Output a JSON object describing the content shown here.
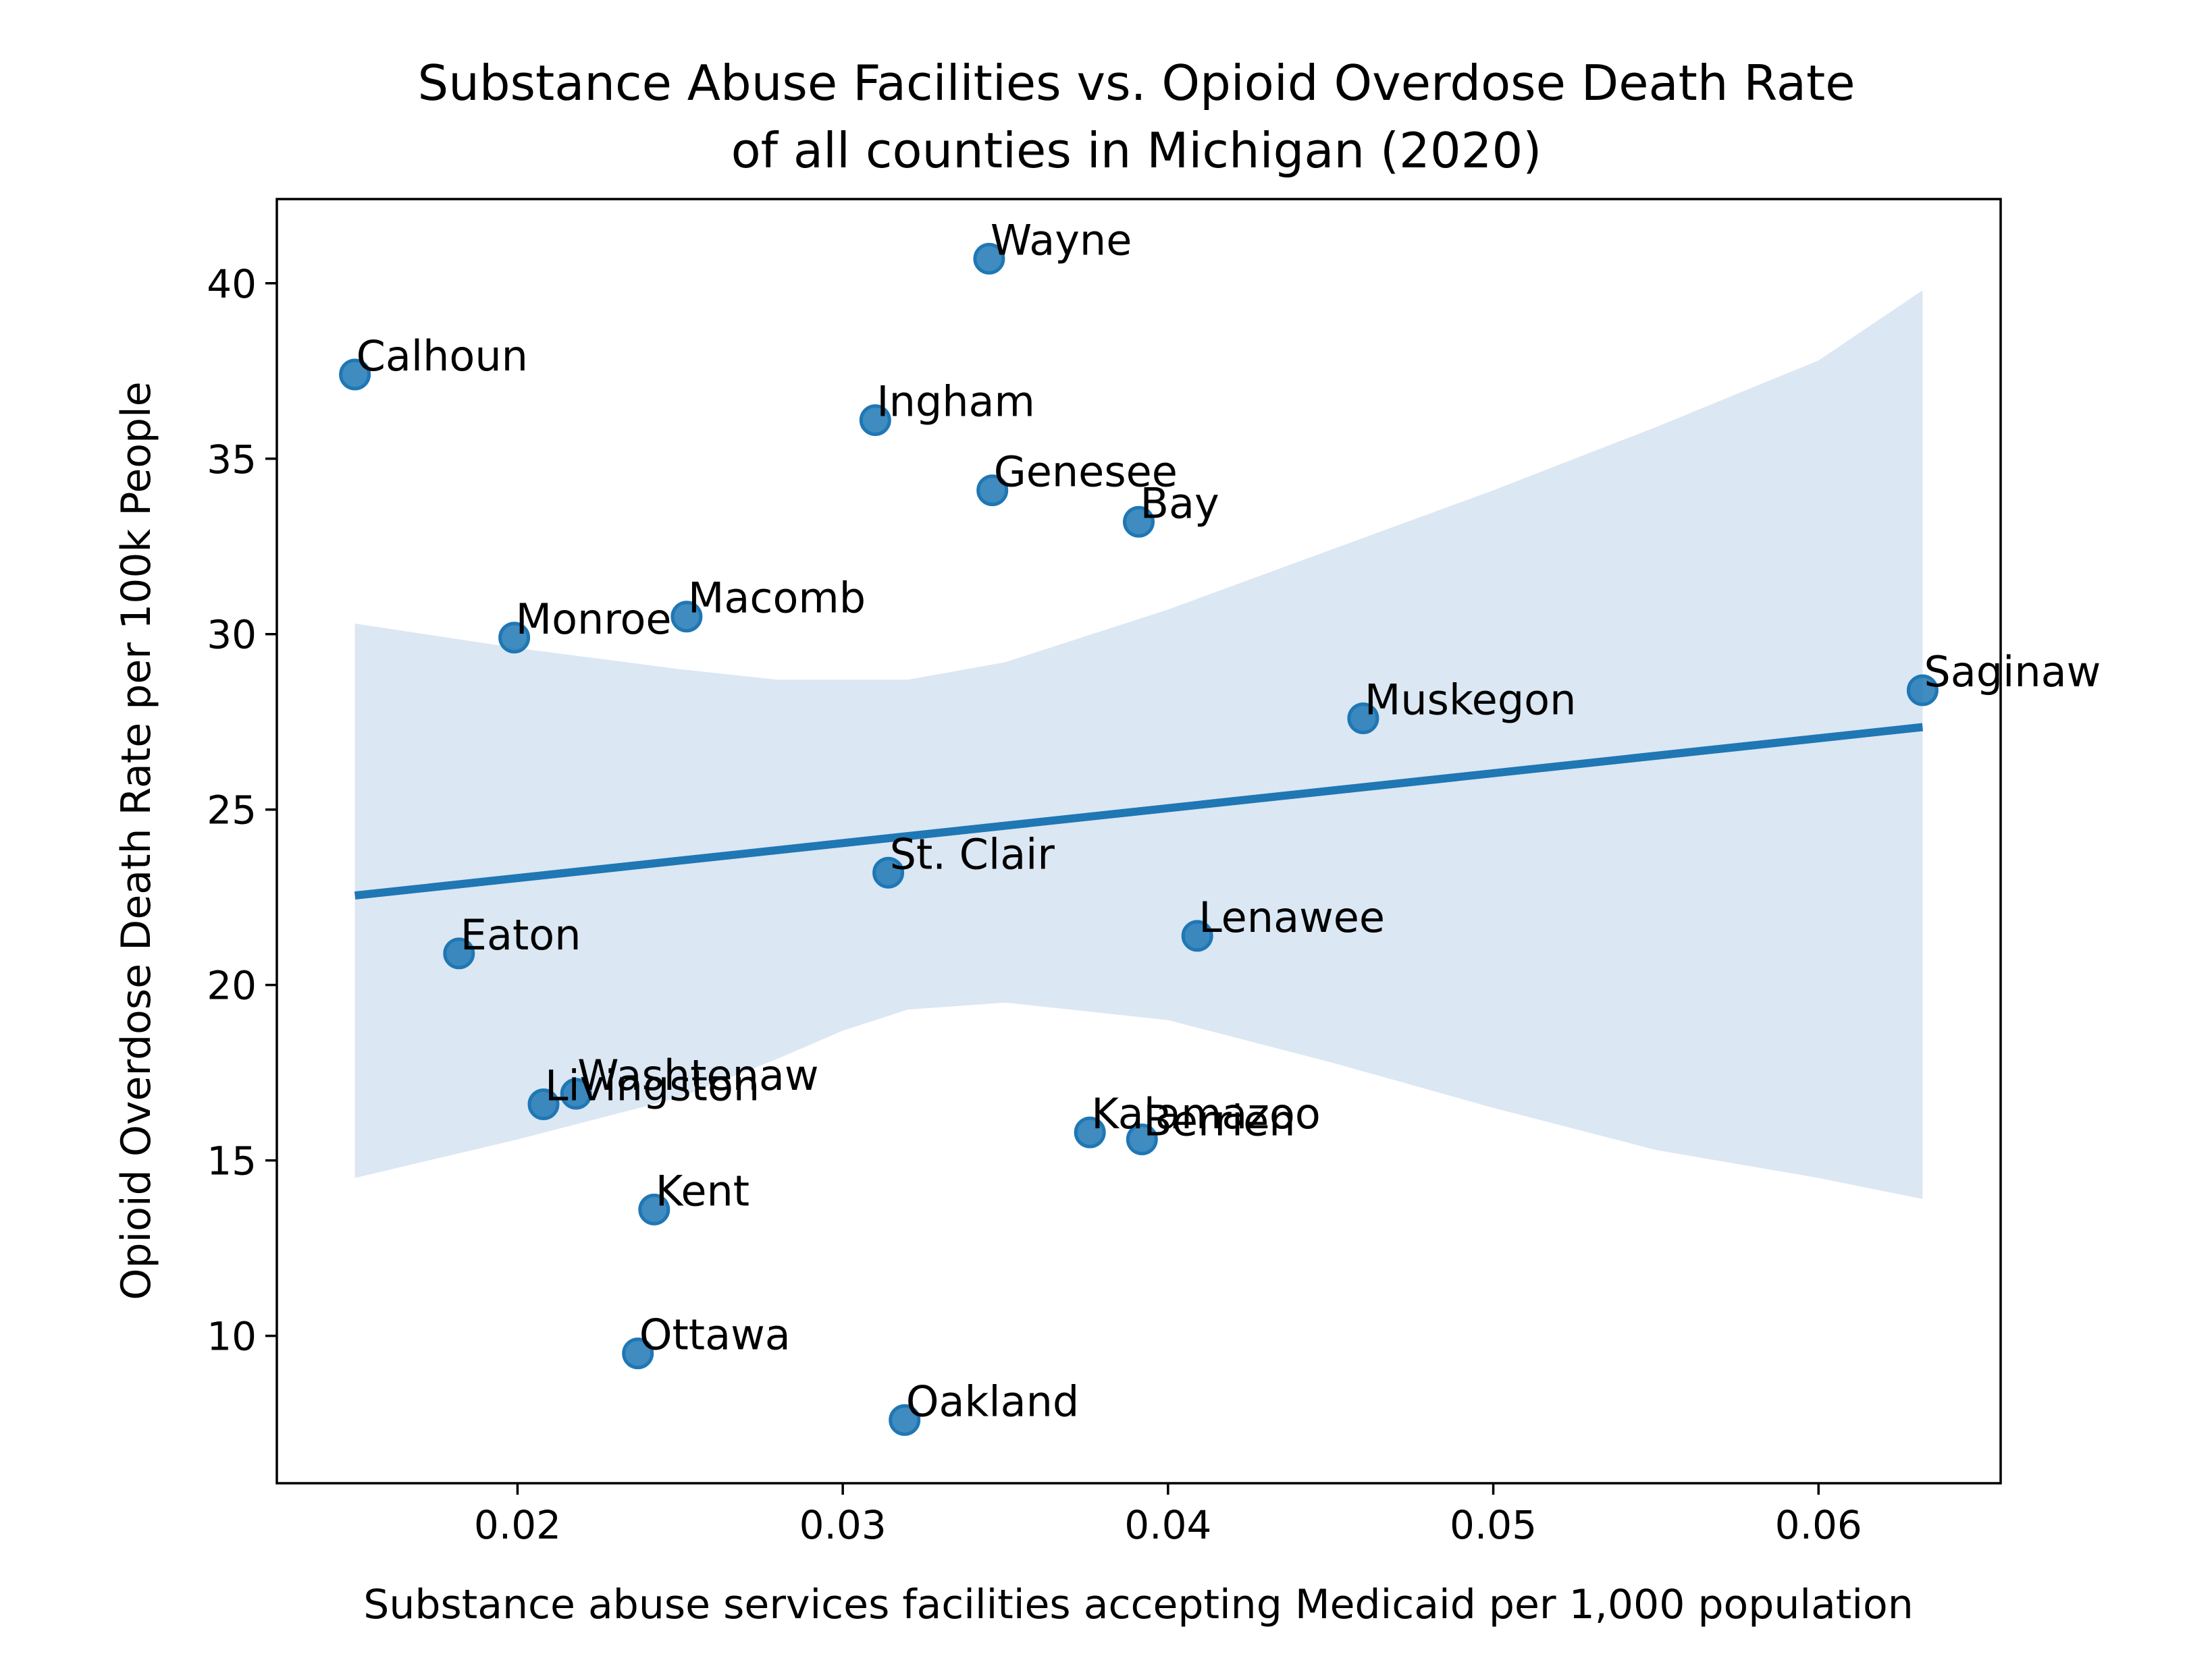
{
  "chart_data": {
    "type": "scatter",
    "title": [
      "Substance Abuse Facilities vs. Opioid Overdose Death Rate",
      "of all counties in Michigan (2020)"
    ],
    "xlabel": "Substance abuse services facilities accepting Medicaid per 1,000 population",
    "ylabel": "Opioid Overdose Death Rate per 100k People",
    "xlim": [
      0.0126,
      0.0656
    ],
    "ylim": [
      5.8,
      42.4
    ],
    "xticks": [
      {
        "value": 0.02,
        "label": "0.02"
      },
      {
        "value": 0.03,
        "label": "0.03"
      },
      {
        "value": 0.04,
        "label": "0.04"
      },
      {
        "value": 0.05,
        "label": "0.05"
      },
      {
        "value": 0.06,
        "label": "0.06"
      }
    ],
    "yticks": [
      {
        "value": 10,
        "label": "10"
      },
      {
        "value": 15,
        "label": "15"
      },
      {
        "value": 20,
        "label": "20"
      },
      {
        "value": 25,
        "label": "25"
      },
      {
        "value": 30,
        "label": "30"
      },
      {
        "value": 35,
        "label": "35"
      },
      {
        "value": 40,
        "label": "40"
      }
    ],
    "point_color": "#1f77b4",
    "band_color": "#dbe7f3",
    "points": [
      {
        "label": "Wayne",
        "x": 0.0345,
        "y": 40.7
      },
      {
        "label": "Calhoun",
        "x": 0.015,
        "y": 37.4
      },
      {
        "label": "Ingham",
        "x": 0.031,
        "y": 36.1
      },
      {
        "label": "Genesee",
        "x": 0.0346,
        "y": 34.1
      },
      {
        "label": "Bay",
        "x": 0.0391,
        "y": 33.2
      },
      {
        "label": "Macomb",
        "x": 0.0252,
        "y": 30.5
      },
      {
        "label": "Monroe",
        "x": 0.0199,
        "y": 29.9
      },
      {
        "label": "Saginaw",
        "x": 0.0632,
        "y": 28.4
      },
      {
        "label": "Muskegon",
        "x": 0.046,
        "y": 27.6
      },
      {
        "label": "St. Clair",
        "x": 0.0314,
        "y": 23.2
      },
      {
        "label": "Lenawee",
        "x": 0.0409,
        "y": 21.4
      },
      {
        "label": "Eaton",
        "x": 0.0182,
        "y": 20.9
      },
      {
        "label": "Washtenaw",
        "x": 0.0218,
        "y": 16.9
      },
      {
        "label": "Livingston",
        "x": 0.0208,
        "y": 16.6
      },
      {
        "label": "Kalamazoo",
        "x": 0.0376,
        "y": 15.8
      },
      {
        "label": "Berrien",
        "x": 0.0392,
        "y": 15.6
      },
      {
        "label": "Kent",
        "x": 0.0242,
        "y": 13.6
      },
      {
        "label": "Ottawa",
        "x": 0.0237,
        "y": 9.5
      },
      {
        "label": "Oakland",
        "x": 0.0319,
        "y": 7.6
      }
    ],
    "regression": {
      "x": [
        0.015,
        0.0632
      ],
      "y": [
        22.55,
        27.35
      ]
    },
    "confidence_band": {
      "x": [
        0.015,
        0.02,
        0.025,
        0.028,
        0.03,
        0.032,
        0.035,
        0.04,
        0.045,
        0.05,
        0.055,
        0.06,
        0.0632
      ],
      "upper": [
        30.3,
        29.6,
        29.0,
        28.7,
        28.7,
        28.7,
        29.2,
        30.7,
        32.4,
        34.1,
        35.9,
        37.8,
        39.8
      ],
      "lower": [
        14.5,
        15.6,
        16.8,
        17.9,
        18.7,
        19.3,
        19.5,
        19.0,
        17.8,
        16.5,
        15.3,
        14.5,
        13.9
      ]
    }
  }
}
